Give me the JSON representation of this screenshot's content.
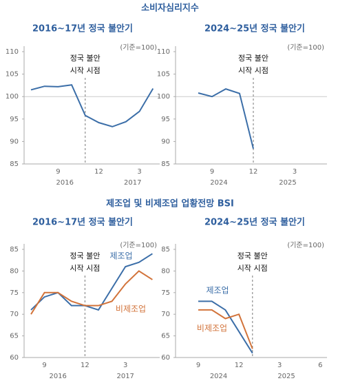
{
  "titles": [
    "소비자심리지수",
    "제조업 및 비제조업 업황전망 BSI"
  ],
  "chart_data": [
    {
      "type": "line",
      "title": "2016~17년 정국 불안기",
      "unit_label": "(기준=100)",
      "annotation": [
        "정국 불안",
        "시작 시점"
      ],
      "event_index": 4,
      "categories": [
        null,
        null,
        "9",
        null,
        null,
        "12",
        null,
        null,
        "3",
        null
      ],
      "x_groups": [
        {
          "label": "2016",
          "start": 0,
          "end": 5
        },
        {
          "label": "2017",
          "start": 6,
          "end": 9
        }
      ],
      "series": [
        {
          "name": null,
          "color": "#3b6ea8",
          "values": [
            101.5,
            102.3,
            102.2,
            102.6,
            95.8,
            94.2,
            93.3,
            94.4,
            96.7,
            101.8
          ]
        }
      ],
      "ylim": [
        85,
        110
      ],
      "yticks": [
        85,
        90,
        95,
        100,
        105,
        110
      ],
      "reference_line": 100
    },
    {
      "type": "line",
      "title": "2024~25년 정국 불안기",
      "unit_label": "(기준=100)",
      "annotation": [
        "정국 불안",
        "시작 시점"
      ],
      "event_index": 5,
      "categories": [
        null,
        null,
        "9",
        null,
        null,
        "12",
        null,
        null,
        "3",
        null
      ],
      "x_groups": [
        {
          "label": "2024",
          "start": 0,
          "end": 5
        },
        {
          "label": "2025",
          "start": 6,
          "end": 9
        }
      ],
      "series": [
        {
          "name": null,
          "color": "#3b6ea8",
          "values": [
            null,
            100.8,
            100.0,
            101.7,
            100.7,
            88.4,
            null,
            null,
            null,
            null
          ]
        }
      ],
      "ylim": [
        85,
        110
      ],
      "yticks": [
        85,
        90,
        95,
        100,
        105,
        110
      ],
      "reference_line": 100
    },
    {
      "type": "line",
      "title": "2016~17년 정국 불안기",
      "unit_label": "(기준=100)",
      "annotation": [
        "정국 불안",
        "시작 시점"
      ],
      "event_index": 4,
      "categories": [
        null,
        "9",
        null,
        null,
        "12",
        null,
        null,
        "3",
        null,
        null
      ],
      "x_groups": [
        {
          "label": "2016",
          "start": 0,
          "end": 4
        },
        {
          "label": "2017",
          "start": 5,
          "end": 9
        }
      ],
      "series": [
        {
          "name": "제조업",
          "color": "#3b6ea8",
          "values": [
            71,
            74,
            75,
            72,
            72,
            71,
            76,
            81,
            82,
            84
          ]
        },
        {
          "name": "비제조업",
          "color": "#d2733a",
          "values": [
            70,
            75,
            75,
            73,
            72,
            72,
            73,
            77,
            80,
            78
          ]
        }
      ],
      "ylim": [
        60,
        85
      ],
      "yticks": [
        60,
        65,
        70,
        75,
        80,
        85
      ]
    },
    {
      "type": "line",
      "title": "2024~25년 정국 불안기",
      "unit_label": "(기준=100)",
      "annotation": [
        "정국 불안",
        "시작 시점"
      ],
      "event_index": 4,
      "categories": [
        "9",
        null,
        null,
        "12",
        null,
        null,
        "3",
        null,
        null,
        "6"
      ],
      "x_groups": [
        {
          "label": "2024",
          "start": 0,
          "end": 3
        },
        {
          "label": "2025",
          "start": 4,
          "end": 9
        }
      ],
      "series": [
        {
          "name": "제조업",
          "color": "#3b6ea8",
          "values": [
            73,
            73,
            71,
            66,
            61,
            null,
            null,
            null,
            null,
            null
          ]
        },
        {
          "name": "비제조업",
          "color": "#d2733a",
          "values": [
            71,
            71,
            69,
            70,
            62,
            null,
            null,
            null,
            null,
            null
          ]
        }
      ],
      "ylim": [
        60,
        85
      ],
      "yticks": [
        60,
        65,
        70,
        75,
        80,
        85
      ]
    }
  ]
}
